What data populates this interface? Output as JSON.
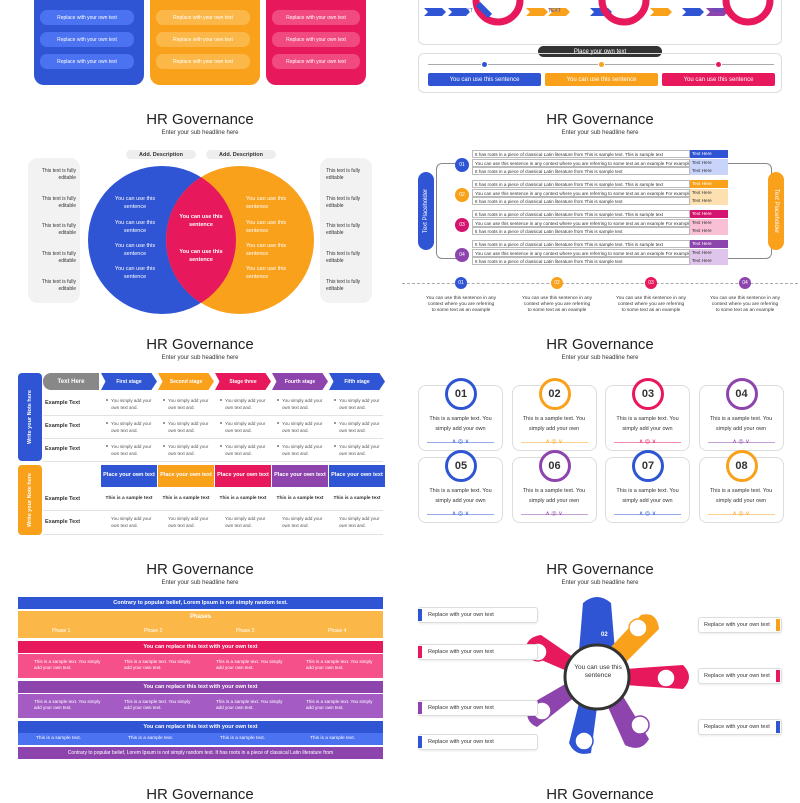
{
  "colors": {
    "blue": "#2f55d4",
    "orange": "#f9a11b",
    "pink": "#e8185c",
    "magenta": "#d4146e",
    "purple": "#8e44ad",
    "gray": "#777"
  },
  "top_left": {
    "pill_text": "Replace with your own text"
  },
  "top_right": {
    "stage_labels": [
      "TEXT",
      "TEXT",
      "TEXT",
      "TEXT",
      "TEXT",
      "TEXT",
      "TEXT"
    ],
    "bar_title": "Place your own text",
    "sentence": "You can use this sentence"
  },
  "venn": {
    "title": "HR Governance",
    "subtitle": "Enter your sub headline here",
    "head_left": "Add. Description",
    "head_right": "Add. Description",
    "side_text": "This text is fully editable",
    "left_text": "You can use this sentence",
    "middle_text": "You can use this sentence",
    "right_text": "You can use this sentence"
  },
  "list": {
    "title": "HR Governance",
    "subtitle": "Enter your sub headline here",
    "left_vertical": "Text Placeholder",
    "right_vertical": "Text Placeholder",
    "numbers": [
      "01",
      "02",
      "03",
      "04"
    ],
    "rows": [
      "It has roots in a piece of classical Latin literature from This is sample text. This is sample text",
      "You can use this sentence in any context where you are referring to some text as an example For example",
      "It has roots in a piece of classical Latin literature from This is sample text"
    ],
    "tag": "Text Here",
    "bottom_text": "You can use this sentence in any context where you are referring to some text as an example"
  },
  "table": {
    "title": "HR Governance",
    "subtitle": "Enter your sub headline here",
    "side_top": "Write your Note here",
    "side_bottom": "Write your Note here",
    "header_first": "Text Here",
    "stages": [
      "First stage",
      "Second stage",
      "Stage three",
      "Fourth stage",
      "Fifth stage"
    ],
    "row_label": "Example Text",
    "bullet_text": "You simply add your own text and.",
    "place_text": "Place your own text",
    "sample_text": "This is a sample text"
  },
  "cards": {
    "title": "HR Governance",
    "subtitle": "Enter your sub headline here",
    "numbers": [
      "01",
      "02",
      "03",
      "04",
      "05",
      "06",
      "07",
      "08"
    ],
    "text": "This is a sample text. You simply add your own"
  },
  "phases": {
    "title": "HR Governance",
    "subtitle": "Enter your sub headline here",
    "banner": "Contrary to popular belief, Lorem Ipsum is not simply random text.",
    "phases_label": "Phases",
    "phase_names": [
      "Phase 1",
      "Phase 2",
      "Phase 3",
      "Phase 4"
    ],
    "replace_text": "You can replace this text with your own text",
    "cell_text": "This is a sample text. You simply add your own text.",
    "sample_text": "This is a sample text.",
    "footer": "Contrary to popular belief, Lorem Ipsum is not simply random text. It has roots in a piece of classical Latin literature from"
  },
  "wheel": {
    "title": "HR Governance",
    "subtitle": "Enter your sub headline here",
    "center": "You can use this sentence",
    "labels": [
      "Replace with your own text",
      "Replace with your own text",
      "Replace with your own text",
      "Replace with your own text",
      "Replace with your own text",
      "Replace with your own text",
      "Replace with your own text"
    ],
    "numbers": [
      "01",
      "02",
      "03",
      "04",
      "05",
      "06",
      "07"
    ]
  },
  "bottom": {
    "title_left": "HR Governance",
    "title_right": "HR Governance"
  }
}
